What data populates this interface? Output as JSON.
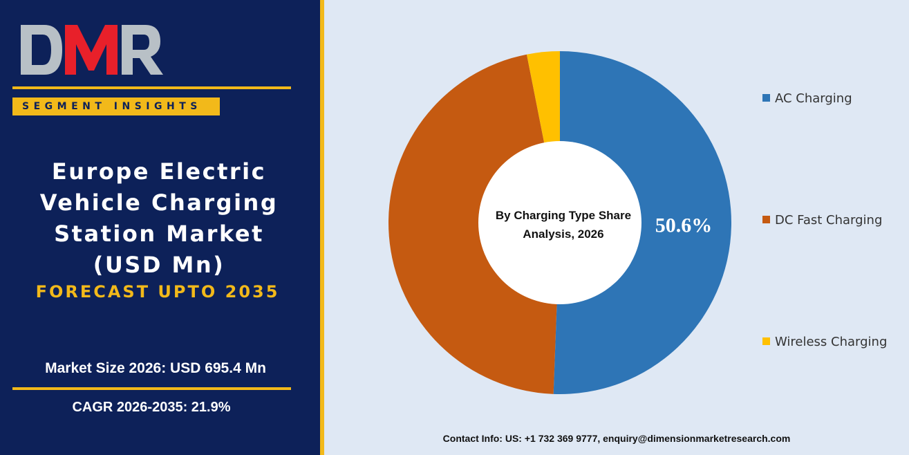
{
  "brand": {
    "logo_text": "DMR",
    "segment_label": "SEGMENT INSIGHTS"
  },
  "left_panel": {
    "title_lines": [
      "Europe Electric",
      "Vehicle Charging",
      "Station Market",
      "(USD Mn)"
    ],
    "forecast": "FORECAST UPTO 2035",
    "market_size": "Market Size 2026: USD 695.4 Mn",
    "cagr": "CAGR 2026-2035: 21.9%"
  },
  "chart_data": {
    "type": "pie",
    "title": "By Charging Type Share Analysis, 2026",
    "title_lines": [
      "By Charging Type Share",
      "Analysis, 2026"
    ],
    "categories": [
      "AC Charging",
      "DC Fast Charging",
      "Wireless Charging"
    ],
    "values": [
      50.6,
      46.3,
      3.1
    ],
    "data_labels": [
      "50.6%",
      "",
      ""
    ],
    "colors": [
      "#2e75b6",
      "#c55a11",
      "#ffc000"
    ],
    "donut": true,
    "legend_position": "right"
  },
  "footer": {
    "contact": "Contact Info: US: +1 732 369 9777, enquiry@dimensionmarketresearch.com"
  },
  "colors": {
    "navy": "#0d2159",
    "gold": "#f2b91a",
    "background": "#dfe8f4"
  }
}
